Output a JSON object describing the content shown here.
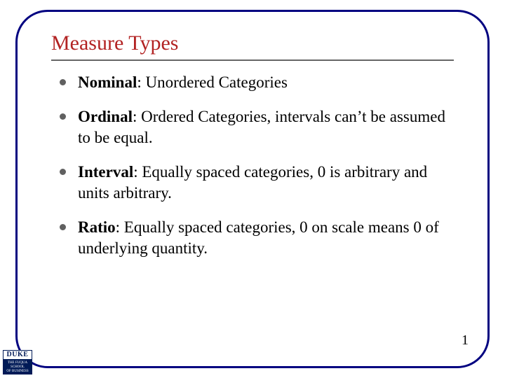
{
  "slide": {
    "title": "Measure Types",
    "title_color": "#b22222",
    "frame_color": "#000080",
    "rule_color": "#666666",
    "bullet_color": "#606060",
    "text_color": "#000000",
    "background_color": "#ffffff",
    "title_fontsize": 30,
    "body_fontsize": 23,
    "items": [
      {
        "term": "Nominal",
        "desc": ": Unordered Categories"
      },
      {
        "term": "Ordinal",
        "desc": ": Ordered Categories, intervals can’t be assumed to be equal."
      },
      {
        "term": "Interval",
        "desc": ": Equally spaced categories, 0 is arbitrary and units arbitrary."
      },
      {
        "term": "Ratio",
        "desc": ": Equally spaced categories, 0 on scale means 0 of underlying quantity."
      }
    ],
    "page_number": "1"
  },
  "logo": {
    "top": "DUKE",
    "line1": "THE FUQUA",
    "line2": "SCHOOL",
    "line3": "OF BUSINESS",
    "bg_color": "#001a57",
    "fg_color": "#ffffff"
  }
}
